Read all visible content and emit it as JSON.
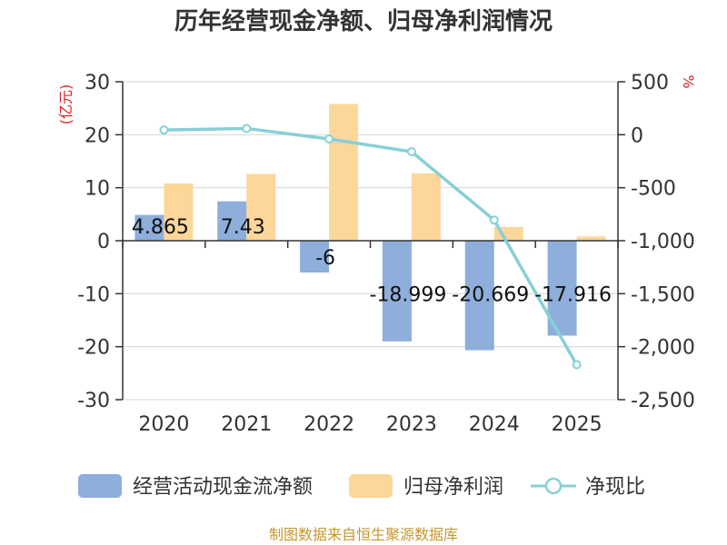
{
  "chart_data": {
    "type": "bar+line",
    "title": "历年经营现金净额、归母净利润情况",
    "categories": [
      "2020",
      "2021",
      "2022",
      "2023",
      "2024",
      "2025"
    ],
    "left_axis": {
      "unit_label": "(亿元)",
      "ylim": [
        -30,
        30
      ],
      "ticks": [
        "30",
        "20",
        "10",
        "0",
        "-10",
        "-20",
        "-30"
      ],
      "tick_values": [
        30,
        20,
        10,
        0,
        -10,
        -20,
        -30
      ]
    },
    "right_axis": {
      "unit_label": "%",
      "ylim": [
        -2500,
        500
      ],
      "ticks": [
        "500",
        "0",
        "-500",
        "-1,000",
        "-1,500",
        "-2,000",
        "-2,500"
      ],
      "tick_values": [
        500,
        0,
        -500,
        -1000,
        -1500,
        -2000,
        -2500
      ]
    },
    "series": [
      {
        "name": "经营活动现金流净额",
        "type": "bar",
        "axis": "left",
        "color": "#8eaedb",
        "values": [
          4.865,
          7.43,
          -6,
          -18.999,
          -20.669,
          -17.916
        ],
        "labels": [
          "4.865",
          "7.43",
          "-6",
          "-18.999",
          "-20.669",
          "-17.916"
        ]
      },
      {
        "name": "归母净利润",
        "type": "bar",
        "axis": "left",
        "color": "#fdd69a",
        "values": [
          10.8,
          12.6,
          25.8,
          12.7,
          2.6,
          0.8
        ]
      },
      {
        "name": "净现比",
        "type": "line",
        "axis": "right",
        "color": "#86d0d6",
        "values": [
          45,
          59,
          -40,
          -160,
          -805,
          -2170
        ]
      }
    ],
    "source": "制图数据来自恒生聚源数据库"
  }
}
